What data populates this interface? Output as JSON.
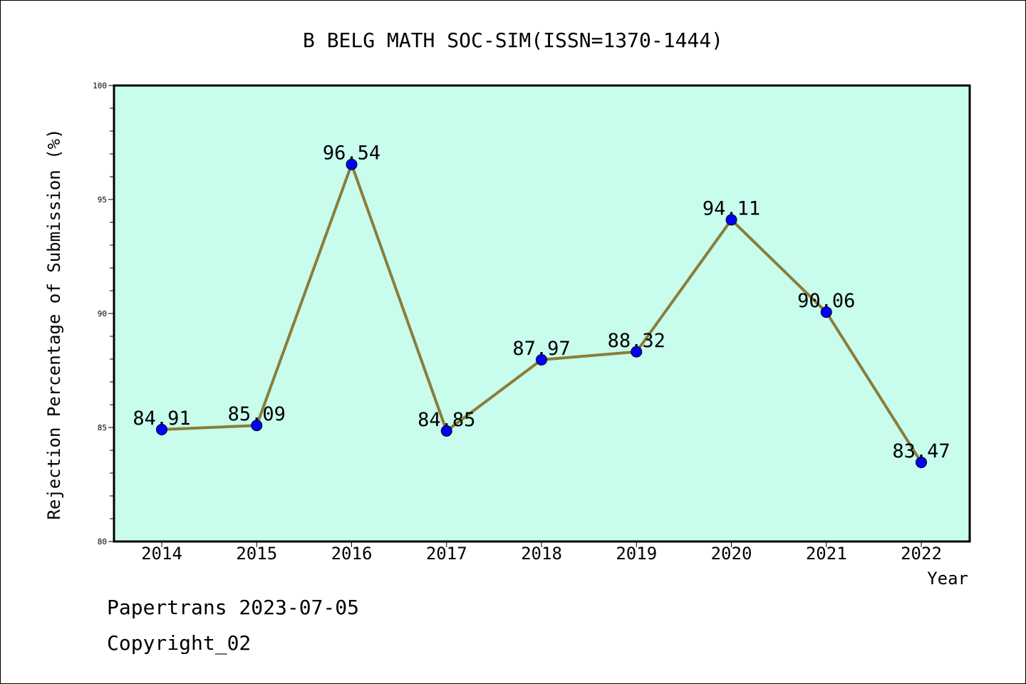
{
  "chart_data": {
    "type": "line",
    "title": "B BELG MATH SOC-SIM(ISSN=1370-1444)",
    "xlabel": "Year",
    "ylabel": "Rejection Percentage of Submission (%)",
    "ylim": [
      80,
      100
    ],
    "yticks": [
      "80",
      "85",
      "90",
      "95",
      "100"
    ],
    "categories": [
      "2014",
      "2015",
      "2016",
      "2017",
      "2018",
      "2019",
      "2020",
      "2021",
      "2022"
    ],
    "values": [
      84.91,
      85.09,
      96.54,
      84.85,
      87.97,
      88.32,
      94.11,
      90.06,
      83.47
    ],
    "data_labels": [
      "84.91",
      "85.09",
      "96.54",
      "84.85",
      "87.97",
      "88.32",
      "94.11",
      "90.06",
      "83.47"
    ],
    "grid": false,
    "colors": {
      "plot_background": "#c8fced",
      "line": "#8b7d3a",
      "marker": "#0000ff"
    }
  },
  "footer": {
    "line1": "Papertrans 2023-07-05",
    "line2": "Copyright_02"
  }
}
